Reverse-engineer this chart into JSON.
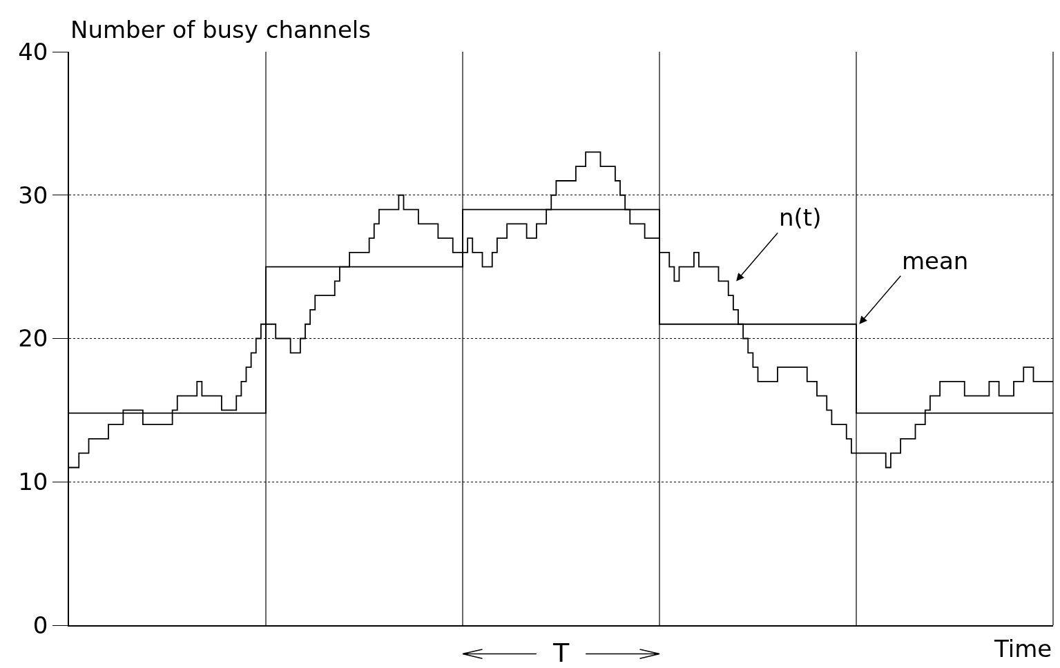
{
  "chart_data": {
    "type": "step",
    "ylabel": "Number of busy channels",
    "xlabel": "Time",
    "categories": [
      null,
      null,
      null,
      null,
      null,
      null,
      null,
      null,
      null,
      null,
      null,
      null,
      null,
      null,
      null,
      null,
      null,
      null,
      null,
      null,
      null,
      null,
      null,
      null,
      null,
      null,
      null,
      null,
      null,
      null,
      null,
      null,
      null,
      null,
      null,
      null,
      null,
      null,
      null,
      null,
      null,
      null,
      null,
      null,
      null,
      null,
      null,
      null,
      null,
      null,
      null,
      null,
      null,
      null,
      null,
      null,
      null,
      null,
      null,
      null,
      null,
      null,
      null,
      null,
      null,
      null,
      null,
      null,
      null,
      null,
      null,
      null,
      null,
      null,
      null,
      null,
      null,
      null,
      null,
      null,
      null,
      null,
      null,
      null,
      null,
      null,
      null,
      null,
      null,
      null,
      null,
      null,
      null,
      null,
      null,
      null,
      null,
      null,
      null,
      null,
      null,
      null,
      null,
      null,
      null,
      null,
      null,
      null,
      null,
      null,
      null,
      null,
      null,
      null,
      null,
      null,
      null,
      null,
      null,
      null,
      null,
      null,
      null,
      null,
      null,
      null,
      null,
      null,
      null,
      null,
      null,
      null,
      null,
      null,
      null,
      null,
      null,
      null,
      null,
      null,
      null,
      null,
      null,
      null,
      null,
      null,
      null,
      null,
      null,
      null,
      null,
      null,
      null,
      null,
      null,
      null,
      null,
      null,
      null,
      null,
      null,
      null,
      null,
      null,
      null,
      null,
      null,
      null,
      null,
      null,
      null,
      null,
      null,
      null,
      null,
      null,
      null,
      null,
      null,
      null,
      null,
      null,
      null,
      null,
      null,
      null,
      null,
      null,
      null,
      null,
      null,
      null,
      null,
      null,
      null,
      null,
      null,
      null,
      null,
      null,
      null
    ],
    "series": [
      {
        "name": null,
        "color": "#000000",
        "values": [
          11,
          11,
          12,
          12,
          13,
          13,
          13,
          13,
          14,
          14,
          14,
          15,
          15,
          15,
          15,
          14,
          14,
          14,
          14,
          14,
          14,
          15,
          16,
          16,
          16,
          16,
          17,
          16,
          16,
          16,
          16,
          15,
          15,
          15,
          16,
          17,
          18,
          19,
          20,
          21,
          21,
          21,
          20,
          20,
          20,
          19,
          19,
          20,
          21,
          22,
          23,
          23,
          23,
          23,
          24,
          25,
          25,
          26,
          26,
          26,
          26,
          27,
          28,
          29,
          29,
          29,
          29,
          30,
          29,
          29,
          29,
          28,
          28,
          28,
          28,
          27,
          27,
          27,
          26,
          26,
          26,
          27,
          26,
          26,
          25,
          25,
          26,
          27,
          27,
          28,
          28,
          28,
          28,
          27,
          27,
          28,
          28,
          29,
          30,
          31,
          31,
          31,
          31,
          32,
          32,
          33,
          33,
          33,
          32,
          32,
          32,
          31,
          30,
          29,
          28,
          28,
          28,
          27,
          27,
          27,
          26,
          26,
          25,
          24,
          25,
          25,
          25,
          26,
          25,
          25,
          25,
          25,
          24,
          24,
          23,
          22,
          21,
          20,
          19,
          18,
          17,
          17,
          17,
          17,
          18,
          18,
          18,
          18,
          18,
          18,
          17,
          17,
          16,
          16,
          15,
          14,
          14,
          14,
          13,
          12,
          12,
          12,
          12,
          12,
          12,
          12,
          11,
          12,
          12,
          13,
          13,
          13,
          14,
          14,
          15,
          16,
          16,
          17,
          17,
          17,
          17,
          17,
          16,
          16,
          16,
          16,
          16,
          17,
          17,
          16,
          16,
          16,
          17,
          17,
          18,
          18,
          17,
          17,
          17,
          17,
          17
        ]
      },
      {
        "name": null,
        "color": "#000000",
        "values": [
          14.8,
          14.8,
          14.8,
          14.8,
          14.8,
          14.8,
          14.8,
          14.8,
          14.8,
          14.8,
          14.8,
          14.8,
          14.8,
          14.8,
          14.8,
          14.8,
          14.8,
          14.8,
          14.8,
          14.8,
          14.8,
          14.8,
          14.8,
          14.8,
          14.8,
          14.8,
          14.8,
          14.8,
          14.8,
          14.8,
          14.8,
          14.8,
          14.8,
          14.8,
          14.8,
          14.8,
          14.8,
          14.8,
          14.8,
          14.8,
          25,
          25,
          25,
          25,
          25,
          25,
          25,
          25,
          25,
          25,
          25,
          25,
          25,
          25,
          25,
          25,
          25,
          25,
          25,
          25,
          25,
          25,
          25,
          25,
          25,
          25,
          25,
          25,
          25,
          25,
          25,
          25,
          25,
          25,
          25,
          25,
          25,
          25,
          25,
          25,
          29,
          29,
          29,
          29,
          29,
          29,
          29,
          29,
          29,
          29,
          29,
          29,
          29,
          29,
          29,
          29,
          29,
          29,
          29,
          29,
          29,
          29,
          29,
          29,
          29,
          29,
          29,
          29,
          29,
          29,
          29,
          29,
          29,
          29,
          29,
          29,
          29,
          29,
          29,
          29,
          21,
          21,
          21,
          21,
          21,
          21,
          21,
          21,
          21,
          21,
          21,
          21,
          21,
          21,
          21,
          21,
          21,
          21,
          21,
          21,
          21,
          21,
          21,
          21,
          21,
          21,
          21,
          21,
          21,
          21,
          21,
          21,
          21,
          21,
          21,
          21,
          21,
          21,
          21,
          21,
          14.8,
          14.8,
          14.8,
          14.8,
          14.8,
          14.8,
          14.8,
          14.8,
          14.8,
          14.8,
          14.8,
          14.8,
          14.8,
          14.8,
          14.8,
          14.8,
          14.8,
          14.8,
          14.8,
          14.8,
          14.8,
          14.8,
          14.8,
          14.8,
          14.8,
          14.8,
          14.8,
          14.8,
          14.8,
          14.8,
          14.8,
          14.8,
          14.8,
          14.8,
          14.8,
          14.8,
          14.8,
          14.8,
          14.8,
          14.8,
          14.8
        ]
      }
    ],
    "ylim": [
      0,
      40
    ],
    "yticks": [
      0,
      10,
      20,
      30,
      40
    ],
    "tick_labels": "y",
    "grid": "y",
    "marker": "none",
    "line_style": "solid",
    "annotations": [
      "n(t)",
      "mean",
      "T"
    ]
  }
}
